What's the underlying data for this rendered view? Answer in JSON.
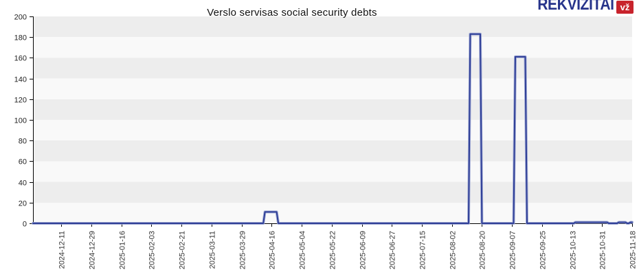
{
  "logo": {
    "brand": "REKVIZITAI",
    "badge": "vž",
    "brand_color": "#27348b",
    "badge_color": "#c8232c"
  },
  "chart_data": {
    "type": "line",
    "title": "Verslo servisas social security debts",
    "xlabel": "",
    "ylabel": "",
    "ylim": [
      0,
      200
    ],
    "y_ticks": [
      0,
      20,
      40,
      60,
      80,
      100,
      120,
      140,
      160,
      180,
      200
    ],
    "x_domain": [
      "2024-11-24",
      "2025-11-18"
    ],
    "x_ticks": [
      "2024-12-11",
      "2024-12-29",
      "2025-01-16",
      "2025-02-03",
      "2025-02-21",
      "2025-03-11",
      "2025-03-29",
      "2025-04-16",
      "2025-05-04",
      "2025-05-22",
      "2025-06-09",
      "2025-06-27",
      "2025-07-15",
      "2025-08-02",
      "2025-08-20",
      "2025-09-07",
      "2025-09-25",
      "2025-10-13",
      "2025-10-31",
      "2025-11-18"
    ],
    "grid": "alternating-horizontal-bands",
    "band_colors": [
      "#ededed",
      "#f9f9f9"
    ],
    "legend": null,
    "series": [
      {
        "name": "Social security debt",
        "color": "#2f3f97",
        "halo_color": "#9aa4d2",
        "points": [
          {
            "date": "2024-11-24",
            "value": 0
          },
          {
            "date": "2025-04-11",
            "value": 0
          },
          {
            "date": "2025-04-12",
            "value": 11
          },
          {
            "date": "2025-04-19",
            "value": 11
          },
          {
            "date": "2025-04-20",
            "value": 0
          },
          {
            "date": "2025-08-12",
            "value": 0
          },
          {
            "date": "2025-08-13",
            "value": 183
          },
          {
            "date": "2025-08-19",
            "value": 183
          },
          {
            "date": "2025-08-20",
            "value": 0
          },
          {
            "date": "2025-09-08",
            "value": 0
          },
          {
            "date": "2025-09-09",
            "value": 161
          },
          {
            "date": "2025-09-15",
            "value": 161
          },
          {
            "date": "2025-09-16",
            "value": 0
          },
          {
            "date": "2025-10-14",
            "value": 0
          },
          {
            "date": "2025-10-15",
            "value": 1
          },
          {
            "date": "2025-11-03",
            "value": 1
          },
          {
            "date": "2025-11-04",
            "value": 0
          },
          {
            "date": "2025-11-09",
            "value": 0
          },
          {
            "date": "2025-11-10",
            "value": 1
          },
          {
            "date": "2025-11-14",
            "value": 1
          },
          {
            "date": "2025-11-15",
            "value": 0
          },
          {
            "date": "2025-11-16",
            "value": 0
          },
          {
            "date": "2025-11-17",
            "value": 1
          },
          {
            "date": "2025-11-18",
            "value": 1
          }
        ]
      }
    ]
  }
}
